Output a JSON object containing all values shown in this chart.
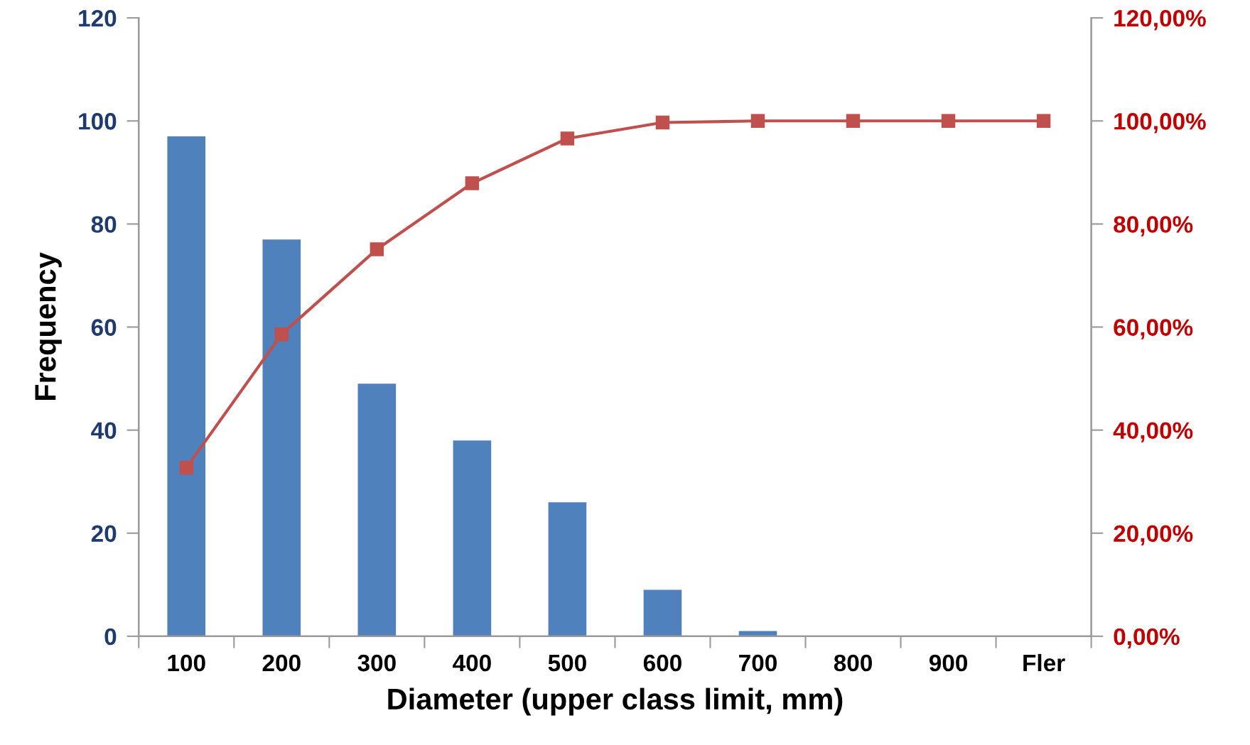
{
  "chart_data": {
    "type": "bar",
    "xlabel": "Diameter (upper class limit, mm)",
    "ylabel": "Frequency",
    "categories": [
      "100",
      "200",
      "300",
      "400",
      "500",
      "600",
      "700",
      "800",
      "900",
      "Fler"
    ],
    "ylim": [
      0,
      120
    ],
    "yticks": [
      0,
      20,
      40,
      60,
      80,
      100,
      120
    ],
    "y2lim": [
      0,
      120
    ],
    "y2ticks": [
      {
        "value": 0,
        "label": "0,00%"
      },
      {
        "value": 20,
        "label": "20,00%"
      },
      {
        "value": 40,
        "label": "40,00%"
      },
      {
        "value": 60,
        "label": "60,00%"
      },
      {
        "value": 80,
        "label": "80,00%"
      },
      {
        "value": 100,
        "label": "100,00%"
      },
      {
        "value": 120,
        "label": "120,00%"
      }
    ],
    "grid": false,
    "legend": false,
    "series": [
      {
        "color": "#4f81bd",
        "values": [
          97,
          77,
          49,
          38,
          26,
          9,
          1,
          0,
          0,
          0
        ]
      },
      {
        "type": "line",
        "axis": "y2",
        "color": "#c0504d",
        "marker": "square",
        "line_style": "solid",
        "values": [
          32.7,
          58.6,
          75.1,
          87.9,
          96.6,
          99.7,
          100,
          100,
          100,
          100
        ]
      }
    ]
  }
}
